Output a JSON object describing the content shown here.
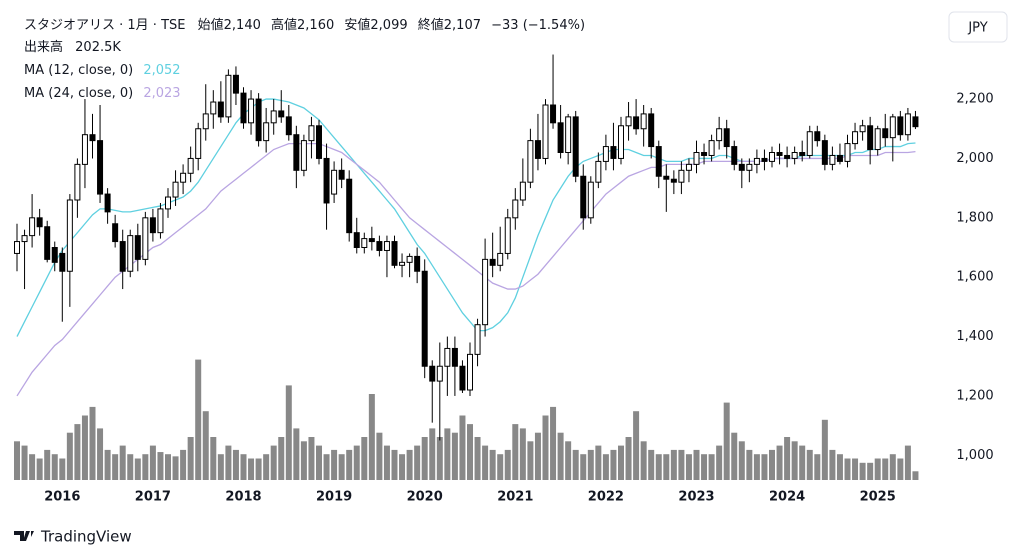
{
  "chart_data": {
    "type": "candlestick",
    "title": "スタジオアリス · 1月 · TSE",
    "ohlc_header": [
      {
        "label": "始値",
        "value": "2,140"
      },
      {
        "label": "高値",
        "value": "2,160"
      },
      {
        "label": "安値",
        "value": "2,099"
      },
      {
        "label": "終値",
        "value": "2,107"
      }
    ],
    "change": "−33 (−1.54%)",
    "volume_title": "出来高",
    "volume_value_label": "202.5K",
    "currency": "JPY",
    "brand": "TradingView",
    "categories": [
      null,
      null,
      null,
      null,
      null,
      null,
      "2016",
      null,
      null,
      null,
      null,
      null,
      null,
      null,
      null,
      null,
      null,
      null,
      "2017",
      null,
      null,
      null,
      null,
      null,
      null,
      null,
      null,
      null,
      null,
      null,
      "2018",
      null,
      null,
      null,
      null,
      null,
      null,
      null,
      null,
      null,
      null,
      null,
      "2019",
      null,
      null,
      null,
      null,
      null,
      null,
      null,
      null,
      null,
      null,
      null,
      "2020",
      null,
      null,
      null,
      null,
      null,
      null,
      null,
      null,
      null,
      null,
      null,
      "2021",
      null,
      null,
      null,
      null,
      null,
      null,
      null,
      null,
      null,
      null,
      null,
      "2022",
      null,
      null,
      null,
      null,
      null,
      null,
      null,
      null,
      null,
      null,
      null,
      "2023",
      null,
      null,
      null,
      null,
      null,
      null,
      null,
      null,
      null,
      null,
      null,
      "2024",
      null,
      null,
      null,
      null,
      null,
      null,
      null,
      null,
      null,
      null,
      null,
      "2025",
      null,
      null,
      null,
      null,
      null
    ],
    "open": [
      1680,
      1720,
      1740,
      1800,
      1770,
      1700,
      1680,
      1620,
      1860,
      1980,
      2080,
      2060,
      1880,
      1780,
      1720,
      1620,
      1740,
      1660,
      1800,
      1750,
      1830,
      1870,
      1920,
      1950,
      2000,
      2100,
      2150,
      2190,
      2140,
      2280,
      2220,
      2120,
      2200,
      2060,
      2120,
      2160,
      2140,
      2080,
      1960,
      2060,
      2110,
      2000,
      1880,
      1960,
      1930,
      1750,
      1700,
      1730,
      1720,
      1690,
      1720,
      1640,
      1650,
      1670,
      1620,
      1300,
      1250,
      1300,
      1360,
      1300,
      1220,
      1340,
      1440,
      1660,
      1640,
      1680,
      1800,
      1860,
      1920,
      2060,
      2000,
      2180,
      2120,
      2020,
      2140,
      1940,
      1800,
      1920,
      1990,
      2040,
      2000,
      2110,
      2140,
      2100,
      2150,
      2040,
      1940,
      1930,
      1920,
      1960,
      1980,
      2020,
      2010,
      2060,
      2100,
      2040,
      1980,
      1960,
      1980,
      2000,
      1990,
      2020,
      2010,
      2000,
      2020,
      2010,
      2090,
      2060,
      1980,
      2010,
      1990,
      2050,
      2090,
      2110,
      2030,
      2100,
      2070,
      2140,
      2080,
      2140
    ],
    "high": [
      1780,
      1760,
      1880,
      1830,
      1790,
      1720,
      1700,
      1880,
      2000,
      2200,
      2150,
      2180,
      1900,
      1810,
      1760,
      1760,
      1780,
      1820,
      1830,
      1850,
      1900,
      1960,
      1980,
      2040,
      2120,
      2250,
      2230,
      2260,
      2300,
      2310,
      2240,
      2230,
      2220,
      2170,
      2200,
      2230,
      2180,
      2110,
      2080,
      2140,
      2130,
      2050,
      1990,
      2000,
      1960,
      1800,
      1750,
      1770,
      1740,
      1740,
      1740,
      1680,
      1680,
      1700,
      1660,
      1320,
      1380,
      1400,
      1400,
      1320,
      1380,
      1460,
      1730,
      1750,
      1770,
      1830,
      1900,
      2000,
      2100,
      2150,
      2200,
      2350,
      2180,
      2150,
      2160,
      1980,
      1940,
      2020,
      2080,
      2120,
      2140,
      2190,
      2200,
      2180,
      2170,
      2060,
      1980,
      1960,
      1990,
      2000,
      2060,
      2050,
      2080,
      2140,
      2130,
      2060,
      2000,
      2000,
      2030,
      2030,
      2040,
      2050,
      2040,
      2040,
      2060,
      2110,
      2110,
      2080,
      2040,
      2050,
      2080,
      2120,
      2130,
      2140,
      2110,
      2150,
      2150,
      2160,
      2170,
      2160
    ],
    "low": [
      1620,
      1560,
      1700,
      1740,
      1650,
      1620,
      1450,
      1500,
      1800,
      1900,
      2000,
      1850,
      1780,
      1700,
      1560,
      1600,
      1620,
      1640,
      1720,
      1730,
      1800,
      1840,
      1880,
      1920,
      1960,
      2060,
      2100,
      2120,
      2120,
      2180,
      2100,
      2080,
      2040,
      2020,
      2080,
      2120,
      2060,
      1900,
      1940,
      2000,
      1980,
      1760,
      1850,
      1900,
      1720,
      1680,
      1680,
      1690,
      1670,
      1600,
      1630,
      1600,
      1600,
      1580,
      1260,
      1110,
      1050,
      1200,
      1200,
      1210,
      1200,
      1300,
      1400,
      1600,
      1620,
      1660,
      1760,
      1840,
      1900,
      1960,
      1980,
      2100,
      2000,
      1980,
      1920,
      1760,
      1780,
      1900,
      1960,
      1960,
      1980,
      2060,
      2080,
      2040,
      2000,
      1900,
      1820,
      1880,
      1880,
      1920,
      1950,
      1980,
      1990,
      2030,
      2000,
      1960,
      1900,
      1920,
      1950,
      1960,
      1970,
      1980,
      1970,
      1980,
      1990,
      2000,
      2040,
      1960,
      1960,
      1980,
      1970,
      2030,
      2060,
      1980,
      2010,
      2040,
      1990,
      2060,
      2060,
      2099
    ],
    "close": [
      1720,
      1740,
      1800,
      1770,
      1660,
      1650,
      1620,
      1860,
      1980,
      2080,
      2060,
      1880,
      1820,
      1720,
      1620,
      1740,
      1660,
      1800,
      1750,
      1830,
      1870,
      1920,
      1950,
      2000,
      2100,
      2150,
      2190,
      2140,
      2280,
      2220,
      2120,
      2200,
      2060,
      2120,
      2160,
      2140,
      2080,
      1960,
      2060,
      2110,
      2000,
      1850,
      1960,
      1930,
      1750,
      1700,
      1730,
      1720,
      1690,
      1720,
      1640,
      1650,
      1670,
      1620,
      1300,
      1250,
      1300,
      1360,
      1300,
      1220,
      1340,
      1440,
      1660,
      1640,
      1680,
      1800,
      1860,
      1920,
      2060,
      2000,
      2180,
      2120,
      2020,
      2140,
      1940,
      1800,
      1920,
      1990,
      2040,
      2000,
      2110,
      2140,
      2100,
      2150,
      2040,
      1940,
      1930,
      1920,
      1960,
      1980,
      2020,
      2010,
      2060,
      2100,
      2040,
      1980,
      1960,
      1980,
      2000,
      1990,
      2020,
      2010,
      2000,
      2020,
      2010,
      2090,
      2060,
      1980,
      2010,
      1990,
      2050,
      2090,
      2110,
      2030,
      2100,
      2070,
      2140,
      2080,
      2150,
      2107
    ],
    "volume": [
      900,
      800,
      600,
      500,
      700,
      600,
      500,
      1100,
      1300,
      1500,
      1700,
      1200,
      700,
      600,
      800,
      600,
      500,
      600,
      800,
      650,
      600,
      550,
      700,
      1000,
      2800,
      1600,
      1000,
      600,
      800,
      700,
      600,
      500,
      500,
      600,
      800,
      1000,
      2200,
      1200,
      900,
      1000,
      800,
      600,
      700,
      600,
      700,
      800,
      1000,
      2000,
      1100,
      800,
      700,
      600,
      700,
      800,
      1000,
      1200,
      1000,
      1200,
      1100,
      1500,
      1300,
      1000,
      800,
      700,
      600,
      700,
      1300,
      1200,
      900,
      1100,
      1500,
      1700,
      1100,
      900,
      700,
      600,
      700,
      800,
      600,
      700,
      800,
      1000,
      1600,
      900,
      700,
      600,
      600,
      700,
      700,
      600,
      700,
      600,
      600,
      800,
      1800,
      1100,
      900,
      700,
      600,
      600,
      700,
      800,
      1000,
      900,
      800,
      700,
      600,
      1400,
      700,
      600,
      500,
      500,
      400,
      400,
      500,
      500,
      600,
      500,
      800,
      202.5
    ],
    "up_color": "#ffffff",
    "down_color": "#000000",
    "outline_color": "#000000",
    "volume_color": "#888888",
    "series": [
      {
        "name": "MA (12, close, 0)",
        "color": "#5fd0e0",
        "last_label": "2,052",
        "values": [
          1400,
          1450,
          1500,
          1550,
          1600,
          1650,
          1690,
          1720,
          1750,
          1780,
          1810,
          1830,
          1830,
          1825,
          1820,
          1820,
          1825,
          1830,
          1835,
          1840,
          1850,
          1860,
          1870,
          1890,
          1920,
          1960,
          2000,
          2040,
          2080,
          2120,
          2150,
          2170,
          2190,
          2200,
          2200,
          2195,
          2190,
          2180,
          2170,
          2150,
          2130,
          2100,
          2070,
          2040,
          2010,
          1980,
          1950,
          1920,
          1890,
          1860,
          1830,
          1790,
          1750,
          1710,
          1680,
          1640,
          1600,
          1560,
          1520,
          1480,
          1450,
          1420,
          1420,
          1430,
          1450,
          1480,
          1530,
          1600,
          1670,
          1740,
          1800,
          1860,
          1900,
          1940,
          1970,
          1990,
          2000,
          2010,
          2020,
          2030,
          2030,
          2030,
          2020,
          2010,
          2010,
          2000,
          1990,
          1990,
          1990,
          2000,
          2000,
          2000,
          2000,
          2010,
          2010,
          2000,
          1990,
          1990,
          1990,
          1990,
          2000,
          2000,
          2000,
          2000,
          2010,
          2010,
          2010,
          2010,
          2010,
          2010,
          2010,
          2020,
          2020,
          2030,
          2030,
          2040,
          2040,
          2040,
          2050,
          2052
        ]
      },
      {
        "name": "MA (24, close, 0)",
        "color": "#b9a5e2",
        "last_label": "2,023",
        "values": [
          1200,
          1240,
          1280,
          1310,
          1340,
          1370,
          1390,
          1420,
          1450,
          1480,
          1510,
          1540,
          1570,
          1600,
          1620,
          1640,
          1660,
          1680,
          1700,
          1710,
          1730,
          1750,
          1770,
          1790,
          1810,
          1830,
          1860,
          1890,
          1910,
          1930,
          1950,
          1970,
          1990,
          2010,
          2030,
          2040,
          2050,
          2050,
          2050,
          2050,
          2050,
          2040,
          2030,
          2020,
          2000,
          1980,
          1960,
          1940,
          1920,
          1890,
          1860,
          1830,
          1800,
          1780,
          1760,
          1740,
          1720,
          1700,
          1680,
          1660,
          1640,
          1620,
          1600,
          1580,
          1570,
          1560,
          1560,
          1570,
          1590,
          1610,
          1640,
          1670,
          1700,
          1730,
          1760,
          1790,
          1820,
          1850,
          1880,
          1900,
          1920,
          1940,
          1950,
          1960,
          1970,
          1970,
          1980,
          1980,
          1980,
          1980,
          1980,
          1990,
          1990,
          1990,
          1990,
          1990,
          1990,
          1990,
          1990,
          1990,
          2000,
          2000,
          2000,
          2000,
          2000,
          2000,
          2000,
          2000,
          2000,
          2000,
          2010,
          2010,
          2010,
          2010,
          2010,
          2020,
          2020,
          2020,
          2020,
          2023
        ]
      }
    ],
    "ylim": [
      900,
      2500
    ],
    "yticks": [
      {
        "value": 1000,
        "label": "1,000"
      },
      {
        "value": 1200,
        "label": "1,200"
      },
      {
        "value": 1400,
        "label": "1,400"
      },
      {
        "value": 1600,
        "label": "1,600"
      },
      {
        "value": 1800,
        "label": "1,800"
      },
      {
        "value": 2000,
        "label": "2,000"
      },
      {
        "value": 2200,
        "label": "2,200"
      }
    ],
    "grid": false
  }
}
